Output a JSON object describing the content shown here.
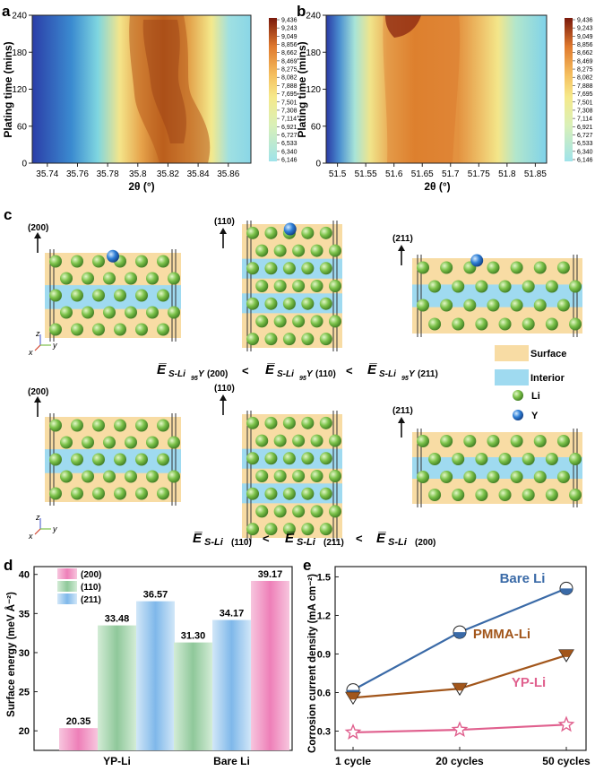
{
  "colors": {
    "heat_low": "#2b3ea8",
    "heat_high": "#7a1a0c",
    "surface": "#f8dca4",
    "interior": "#9fdaf0",
    "li_atom": "#7cc24a",
    "y_atom": "#2f7fd6",
    "pink": "#ee7fb8",
    "green": "#8fc89a",
    "blue": "#7fb8ea",
    "bare_li": "#3a6aa7",
    "pmma_li": "#a2561b",
    "yp_li": "#e0608e"
  },
  "panel_labels": {
    "a": "a",
    "b": "b",
    "c": "c",
    "d": "d",
    "e": "e"
  },
  "colorbar_ticks": [
    "9,436",
    "9,243",
    "9,049",
    "8,856",
    "8,662",
    "8,469",
    "8,275",
    "8,082",
    "7,888",
    "7,695",
    "7,501",
    "7,308",
    "7,114",
    "6,921",
    "6,727",
    "6,533",
    "6,340",
    "6,146"
  ],
  "chart_data": [
    {
      "id": "a",
      "type": "heatmap",
      "xlabel": "2θ (°)",
      "ylabel": "Plating time (mins)",
      "xlim": [
        35.73,
        35.875
      ],
      "ylim": [
        0,
        240
      ],
      "x_ticks": [
        "35.74",
        "35.76",
        "35.78",
        "35.8",
        "35.82",
        "35.84",
        "35.86"
      ],
      "x_tick_values": [
        35.74,
        35.76,
        35.78,
        35.8,
        35.82,
        35.84,
        35.86
      ],
      "y_ticks": [
        "0",
        "60",
        "120",
        "180",
        "240"
      ],
      "y_tick_values": [
        0,
        60,
        120,
        180,
        240
      ],
      "peak_center_by_time": [
        [
          0,
          35.822
        ],
        [
          60,
          35.825
        ],
        [
          120,
          35.813
        ],
        [
          180,
          35.812
        ],
        [
          240,
          35.812
        ]
      ],
      "color_range": [
        6146,
        9436
      ]
    },
    {
      "id": "b",
      "type": "heatmap",
      "xlabel": "2θ (°)",
      "ylabel": "Plating time (mins)",
      "xlim": [
        51.48,
        51.87
      ],
      "ylim": [
        0,
        240
      ],
      "x_ticks": [
        "51.5",
        "51.55",
        "51.6",
        "51.65",
        "51.7",
        "51.75",
        "51.8",
        "51.85"
      ],
      "x_tick_values": [
        51.5,
        51.55,
        51.6,
        51.65,
        51.7,
        51.75,
        51.8,
        51.85
      ],
      "y_ticks": [
        "0",
        "60",
        "120",
        "180",
        "240"
      ],
      "y_tick_values": [
        0,
        60,
        120,
        180,
        240
      ],
      "peak_center_by_time": [
        [
          0,
          51.66
        ],
        [
          120,
          51.66
        ],
        [
          240,
          51.66
        ]
      ],
      "color_range": [
        6146,
        9436
      ]
    },
    {
      "id": "d",
      "type": "bar",
      "ylabel": "Surface energy (meV Å⁻²)",
      "ylim": [
        17.5,
        41
      ],
      "y_ticks": [
        "20",
        "25",
        "30",
        "35",
        "40"
      ],
      "y_tick_values": [
        20,
        25,
        30,
        35,
        40
      ],
      "groups": [
        "YP-Li",
        "Bare Li"
      ],
      "series": [
        {
          "name": "(200)",
          "values": [
            20.35,
            39.17
          ]
        },
        {
          "name": "(110)",
          "values": [
            33.48,
            31.3
          ]
        },
        {
          "name": "(211)",
          "values": [
            36.57,
            34.17
          ]
        }
      ],
      "bar_order": [
        [
          "(200)",
          "(110)",
          "(211)"
        ],
        [
          "(110)",
          "(211)",
          "(200)"
        ]
      ],
      "value_labels": [
        [
          "20.35",
          "33.48",
          "36.57"
        ],
        [
          "31.30",
          "34.17",
          "39.17"
        ]
      ]
    },
    {
      "id": "e",
      "type": "line",
      "ylabel": "Corrosion current density (mA cm⁻²)",
      "categories": [
        "1 cycle",
        "20 cycles",
        "50 cycles"
      ],
      "ylim": [
        0.15,
        1.58
      ],
      "y_ticks": [
        "0.3",
        "0.6",
        "0.9",
        "1.2",
        "1.5"
      ],
      "y_tick_values": [
        0.3,
        0.6,
        0.9,
        1.2,
        1.5
      ],
      "series": [
        {
          "name": "Bare Li",
          "values": [
            0.62,
            1.07,
            1.41
          ]
        },
        {
          "name": "PMMA-Li",
          "values": [
            0.56,
            0.63,
            0.89
          ]
        },
        {
          "name": "YP-Li",
          "values": [
            0.29,
            0.31,
            0.35
          ]
        }
      ]
    }
  ],
  "panel_c": {
    "facets": [
      "(200)",
      "(110)",
      "(211)"
    ],
    "inequality_top": {
      "sym": "E̅",
      "subscript": "S-Li",
      "sub2": "95",
      "suffix": "Y",
      "terms": [
        "(200)",
        "(110)",
        "(211)"
      ],
      "op": "<"
    },
    "inequality_bottom": {
      "sym": "E̅",
      "subscript": "S-Li",
      "terms": [
        "(110)",
        "(211)",
        "(200)"
      ],
      "op": "<"
    },
    "legend": {
      "surface": "Surface",
      "interior": "Interior",
      "li": "Li",
      "y": "Y"
    },
    "axes": {
      "z": "z",
      "x": "x",
      "y": "y"
    }
  }
}
